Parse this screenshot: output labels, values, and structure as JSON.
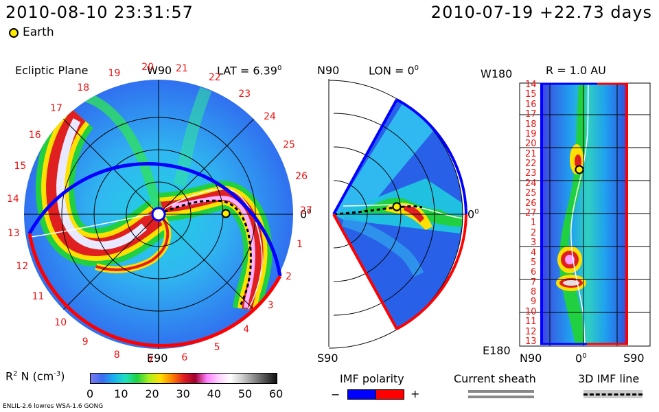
{
  "header": {
    "datetime": "2010-08-10 23:31:57",
    "ref": "2010-07-19 +22.73 days",
    "earth_label": "Earth"
  },
  "ecliptic": {
    "title": "Ecliptic Plane",
    "lat_label": "LAT = 6.39",
    "lat_sup": "0",
    "w90": "W90",
    "e90": "E90",
    "zero_label": "0",
    "zero_sup": "0",
    "rotation_ticks": [
      "27",
      "1",
      "2",
      "3",
      "4",
      "5",
      "6",
      "7",
      "8",
      "9",
      "10",
      "11",
      "12",
      "13",
      "14",
      "15",
      "16",
      "17",
      "18",
      "19",
      "20",
      "21",
      "22",
      "23",
      "24",
      "25",
      "26"
    ]
  },
  "meridional": {
    "n90": "N90",
    "s90": "S90",
    "lon_label": "LON = 0",
    "lon_sup": "0",
    "zero_label": "0",
    "zero_sup": "0"
  },
  "radial": {
    "w180": "W180",
    "e180": "E180",
    "r_label": "R = 1.0 AU",
    "n90": "N90",
    "zero_label": "0",
    "zero_sup": "0",
    "s90": "S90",
    "left_ticks": [
      "14",
      "15",
      "16",
      "17",
      "18",
      "19",
      "20",
      "21",
      "22",
      "23",
      "24",
      "25",
      "26",
      "27",
      "1",
      "2",
      "3",
      "4",
      "5",
      "6",
      "7",
      "8",
      "9",
      "10",
      "11",
      "12",
      "13"
    ]
  },
  "colorbar": {
    "label": "R",
    "label_sup": "2",
    "label_rest": " N (cm",
    "label_exp": "-3",
    "label_end": ")",
    "ticks": [
      "0",
      "10",
      "20",
      "30",
      "40",
      "50",
      "60"
    ],
    "colors": [
      "#7a7aee",
      "#3a6cf0",
      "#18b0f0",
      "#20e0c0",
      "#20d040",
      "#a8f020",
      "#ffe000",
      "#ff8000",
      "#e02020",
      "#a00030",
      "#ff80ff",
      "#ffd0ff",
      "#ffffff",
      "#d0d0d0",
      "#909090",
      "#505050",
      "#101010"
    ]
  },
  "legend": {
    "imf_title": "IMF polarity",
    "minus": "−",
    "plus": "+",
    "neg_color": "#0000ff",
    "pos_color": "#ff0000",
    "sheath_title": "Current sheath",
    "imf_line_title": "3D IMF line"
  },
  "footer": {
    "model": "ENLIL-2.6 lowres WSA-1.6 GONG"
  }
}
